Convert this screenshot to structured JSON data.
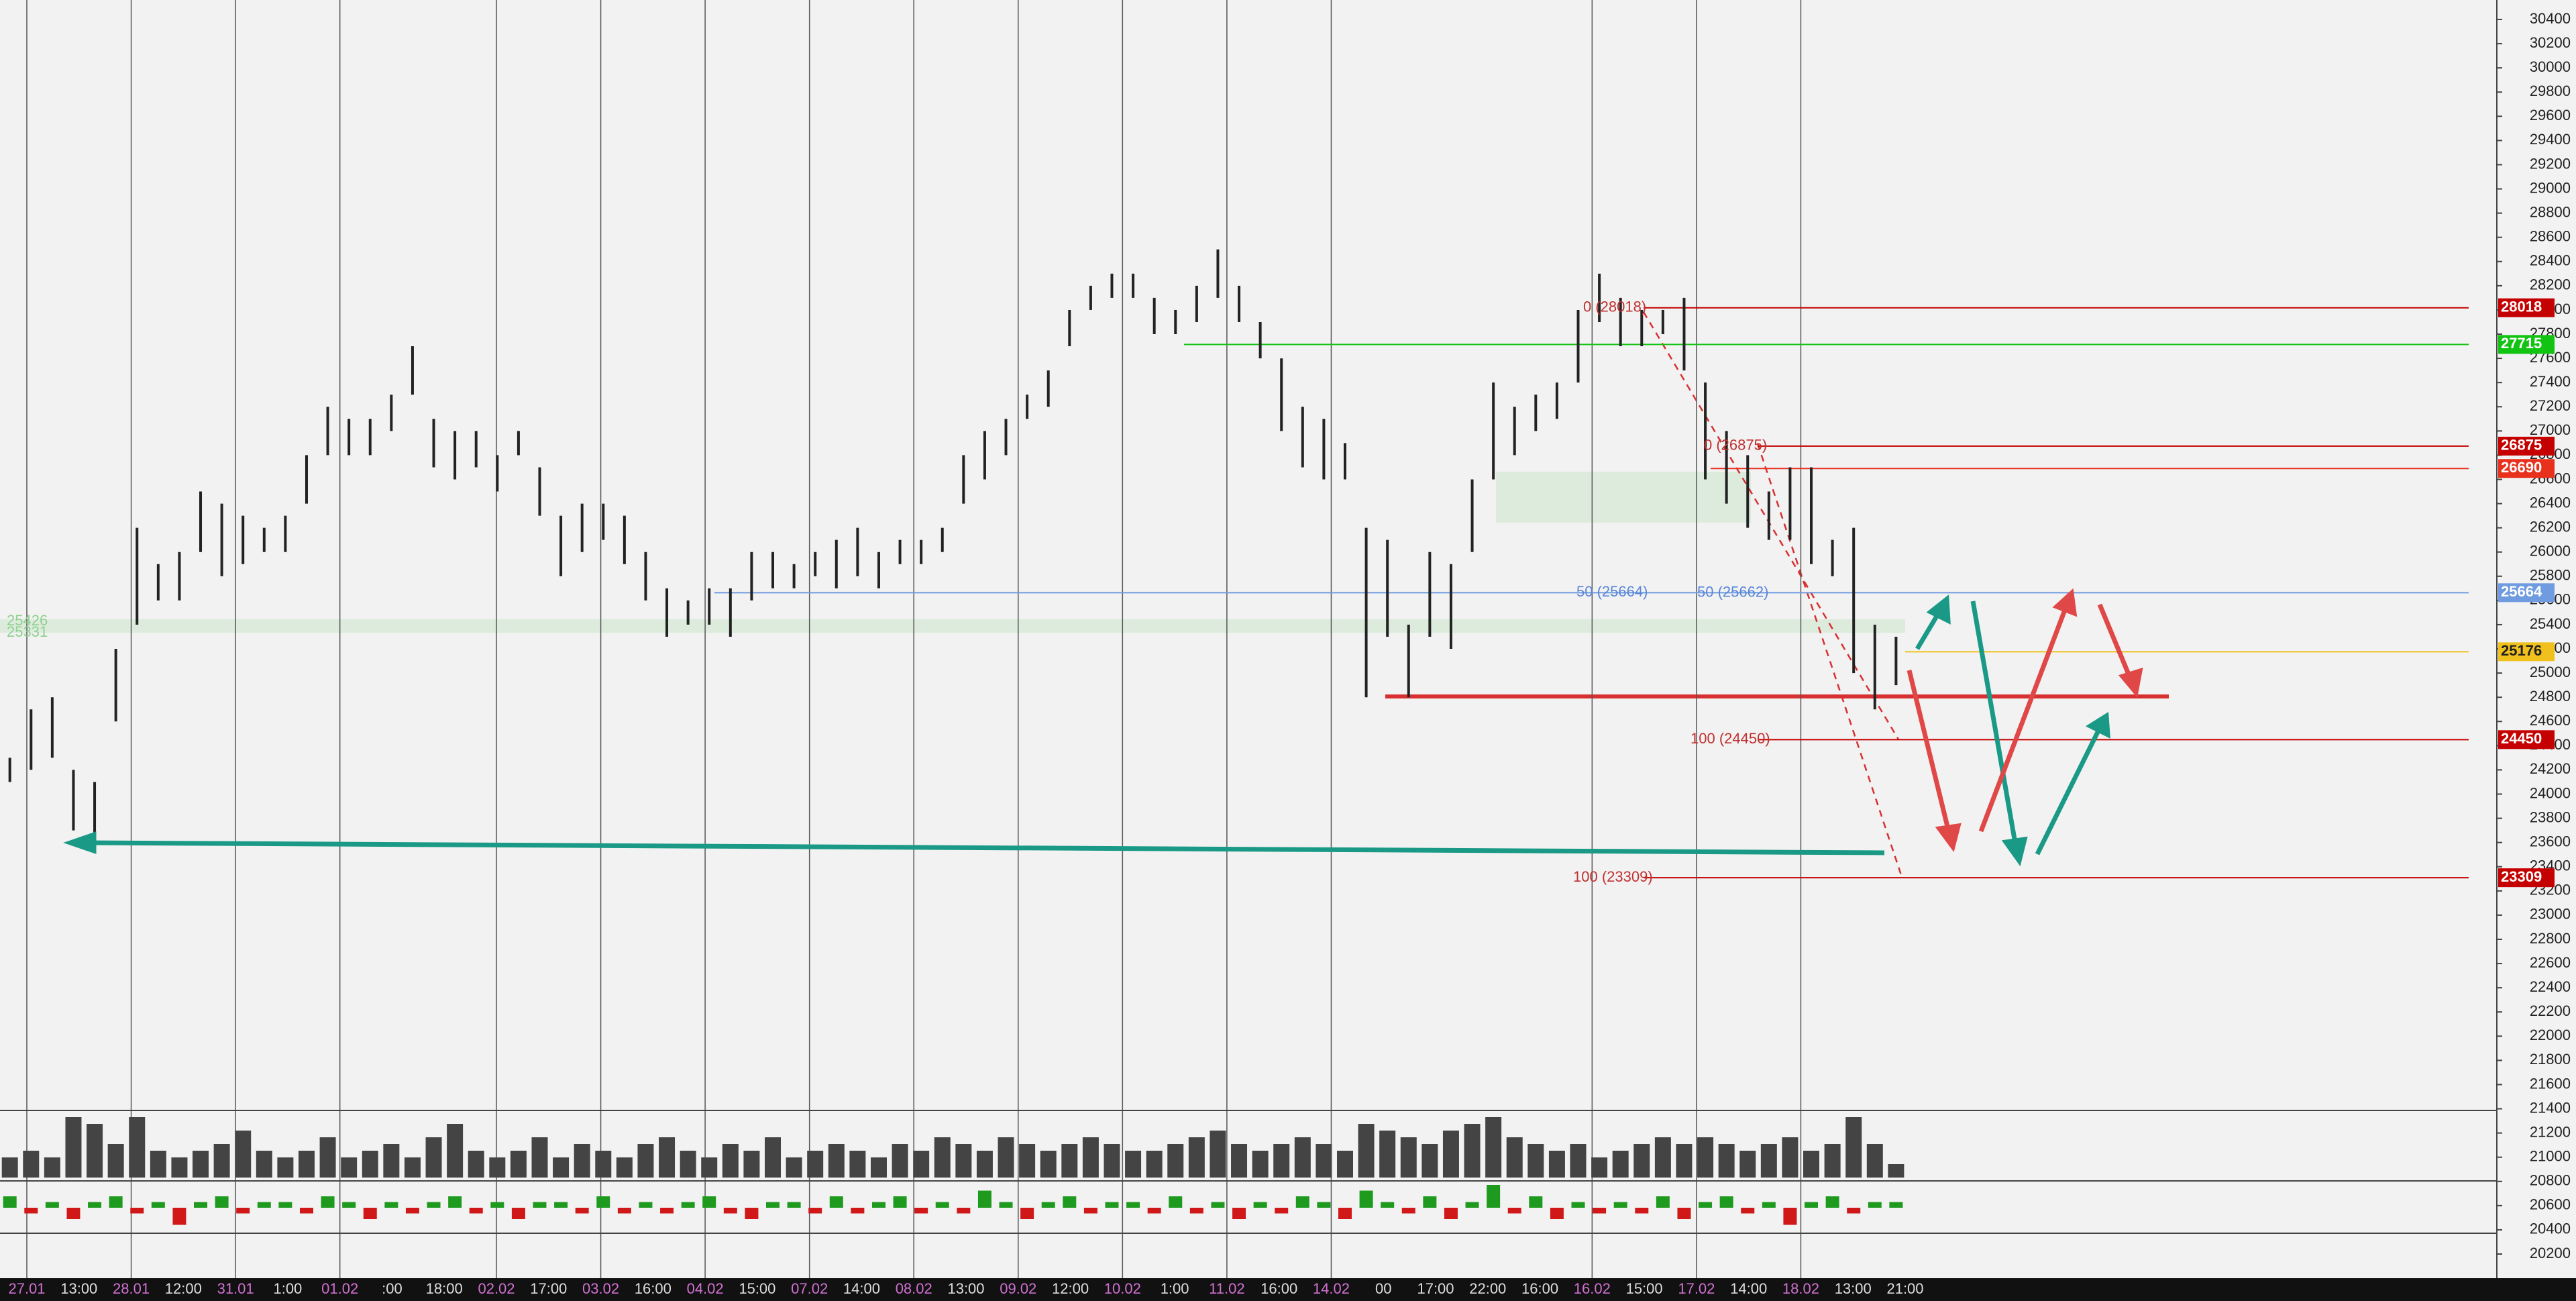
{
  "chart_data": {
    "type": "ohlc",
    "color": "#222222",
    "ylim": [
      20200,
      30400
    ],
    "yticks": [
      20200,
      20400,
      20600,
      20800,
      21000,
      21200,
      21400,
      21600,
      21800,
      22000,
      22200,
      22400,
      22600,
      22800,
      23000,
      23200,
      23400,
      23600,
      23800,
      24000,
      24200,
      24400,
      24600,
      24800,
      25000,
      25200,
      25400,
      25600,
      25800,
      26000,
      26200,
      26400,
      26600,
      26800,
      27000,
      27200,
      27400,
      27600,
      27800,
      28000,
      28200,
      28400,
      28600,
      28800,
      29000,
      29200,
      29400,
      29600,
      29800,
      30000,
      30200,
      30400
    ],
    "x_labels": [
      "27.01",
      "13:00",
      "28.01",
      "12:00",
      "31.01",
      "1:00",
      "01.02",
      ":00",
      "18:00",
      "02.02",
      "17:00",
      "03.02",
      "16:00",
      "04.02",
      "15:00",
      "07.02",
      "14:00",
      "08.02",
      "13:00",
      "09.02",
      "12:00",
      "10.02",
      "1:00",
      "11.02",
      "16:00",
      "14.02",
      "00",
      "17:00",
      "22:00",
      "16:00",
      "16.02",
      "15:00",
      "17.02",
      "14:00",
      "18.02",
      "13:00",
      "21:00"
    ],
    "low": [
      24100,
      24200,
      24300,
      23700,
      23600,
      24600,
      25400,
      25600,
      25600,
      26000,
      25800,
      25900,
      26000,
      26000,
      26400,
      26800,
      26800,
      26800,
      27000,
      27300,
      26700,
      26600,
      26700,
      26500,
      26800,
      26300,
      25800,
      26000,
      26100,
      25900,
      25600,
      25300,
      25400,
      25400,
      25300,
      25600,
      25700,
      25700,
      25800,
      25700,
      25800,
      25700,
      25900,
      25900,
      26000,
      26400,
      26600,
      26800,
      27100,
      27200,
      27700,
      28000,
      28100,
      28100,
      27800,
      27800,
      27900,
      28100,
      27900,
      27600,
      27000,
      26700,
      26600,
      26600,
      24800,
      25300,
      24800,
      25300,
      25200,
      26000,
      26600,
      26800,
      27000,
      27100,
      27400,
      27900,
      27700,
      27700,
      27800,
      27500,
      26600,
      26400,
      26200,
      26100,
      26100,
      25900,
      25800,
      25000,
      24700,
      24900
    ],
    "high": [
      24300,
      24700,
      24800,
      24200,
      24100,
      25200,
      26200,
      25900,
      26000,
      26500,
      26400,
      26300,
      26200,
      26300,
      26800,
      27200,
      27100,
      27100,
      27300,
      27700,
      27100,
      27000,
      27000,
      26800,
      27000,
      26700,
      26300,
      26400,
      26400,
      26300,
      26000,
      25700,
      25600,
      25700,
      25700,
      26000,
      26000,
      25900,
      26000,
      26100,
      26200,
      26000,
      26100,
      26100,
      26200,
      26800,
      27000,
      27100,
      27300,
      27500,
      28000,
      28200,
      28300,
      28300,
      28100,
      28000,
      28200,
      28500,
      28200,
      27900,
      27600,
      27200,
      27100,
      26900,
      26200,
      26100,
      25400,
      26000,
      25900,
      26600,
      27400,
      27200,
      27300,
      27400,
      28000,
      28300,
      28100,
      28000,
      28000,
      28100,
      27400,
      27000,
      26800,
      26500,
      26700,
      26700,
      26100,
      26200,
      25400,
      25300
    ],
    "volume": [
      3,
      4,
      3,
      9,
      8,
      5,
      9,
      4,
      3,
      4,
      5,
      7,
      4,
      3,
      4,
      6,
      3,
      4,
      5,
      3,
      6,
      8,
      4,
      3,
      4,
      6,
      3,
      5,
      4,
      3,
      5,
      6,
      4,
      3,
      5,
      4,
      6,
      3,
      4,
      5,
      4,
      3,
      5,
      4,
      6,
      5,
      4,
      6,
      5,
      4,
      5,
      6,
      5,
      4,
      4,
      5,
      6,
      7,
      5,
      4,
      5,
      6,
      5,
      4,
      8,
      7,
      6,
      5,
      7,
      8,
      9,
      6,
      5,
      4,
      5,
      3,
      4,
      5,
      6,
      5,
      6,
      5,
      4,
      5,
      6,
      4,
      5,
      9,
      5,
      2
    ],
    "delta": [
      2,
      -1,
      1,
      -2,
      1,
      2,
      -1,
      1,
      -3,
      1,
      2,
      -1,
      1,
      1,
      -1,
      2,
      1,
      -2,
      1,
      -1,
      1,
      2,
      -1,
      1,
      -2,
      1,
      1,
      -1,
      2,
      -1,
      1,
      -1,
      1,
      2,
      -1,
      -2,
      1,
      1,
      -1,
      2,
      -1,
      1,
      2,
      -1,
      1,
      -1,
      3,
      1,
      -2,
      1,
      2,
      -1,
      1,
      1,
      -1,
      2,
      -1,
      1,
      -2,
      1,
      -1,
      2,
      1,
      -2,
      3,
      1,
      -1,
      2,
      -2,
      1,
      4,
      -1,
      2,
      -2,
      1,
      -1,
      1,
      -1,
      2,
      -2,
      1,
      2,
      -1,
      1,
      -3,
      1,
      2,
      -1,
      1,
      1
    ],
    "levels": [
      {
        "value": 28018,
        "color": "#c40000",
        "text_color": "#ffffff"
      },
      {
        "value": 27715,
        "color": "#11c411",
        "text_color": "#ffffff"
      },
      {
        "value": 26875,
        "color": "#c40000",
        "text_color": "#ffffff"
      },
      {
        "value": 26690,
        "color": "#e8301c",
        "text_color": "#ffffff"
      },
      {
        "value": 25664,
        "color": "#6f9be0",
        "text_color": "#ffffff"
      },
      {
        "value": 25176,
        "color": "#f0c11c",
        "text_color": "#222222"
      },
      {
        "value": 24450,
        "color": "#c40000",
        "text_color": "#ffffff"
      },
      {
        "value": 23309,
        "color": "#c40000",
        "text_color": "#ffffff"
      }
    ],
    "zone_labels": [
      25426,
      25331
    ],
    "annotations": [
      {
        "text": "0 (28018)",
        "price": 28018,
        "color": "#c03030"
      },
      {
        "text": "0 (26875)",
        "price": 26875,
        "color": "#c03030"
      },
      {
        "text": "50 (25664)",
        "price": 25664,
        "color": "#5a86d8"
      },
      {
        "text": "50 (25662)",
        "price": 25662,
        "color": "#5a86d8"
      },
      {
        "text": "100 (24450)",
        "price": 24450,
        "color": "#c03030"
      },
      {
        "text": "100 (23309)",
        "price": 23309,
        "color": "#c03030"
      }
    ]
  }
}
